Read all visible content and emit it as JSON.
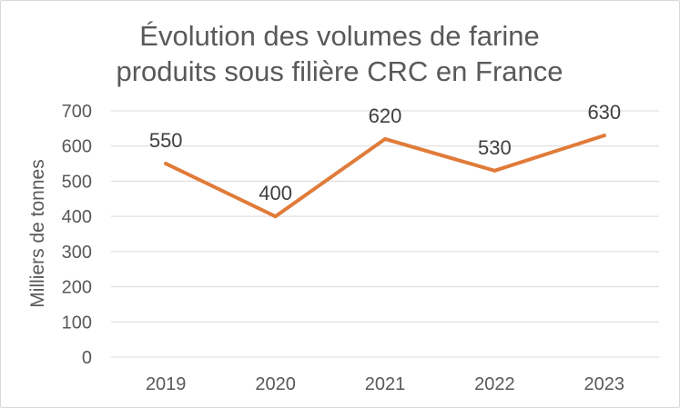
{
  "chart_data": {
    "type": "line",
    "title_lines": [
      "Évolution des volumes de farine",
      "produits sous filière CRC en France"
    ],
    "xlabel": "",
    "ylabel": "Milliers de tonnes",
    "categories": [
      "2019",
      "2020",
      "2021",
      "2022",
      "2023"
    ],
    "series": [
      {
        "values": [
          550,
          400,
          620,
          530,
          630
        ],
        "color": "#E07B39"
      }
    ],
    "data_labels": [
      "550",
      "400",
      "620",
      "530",
      "630"
    ],
    "ylim": [
      0,
      700
    ],
    "yticks": [
      0,
      100,
      200,
      300,
      400,
      500,
      600,
      700
    ],
    "ytick_labels": [
      "0",
      "100",
      "200",
      "300",
      "400",
      "500",
      "600",
      "700"
    ],
    "grid": true,
    "legend": "none"
  }
}
